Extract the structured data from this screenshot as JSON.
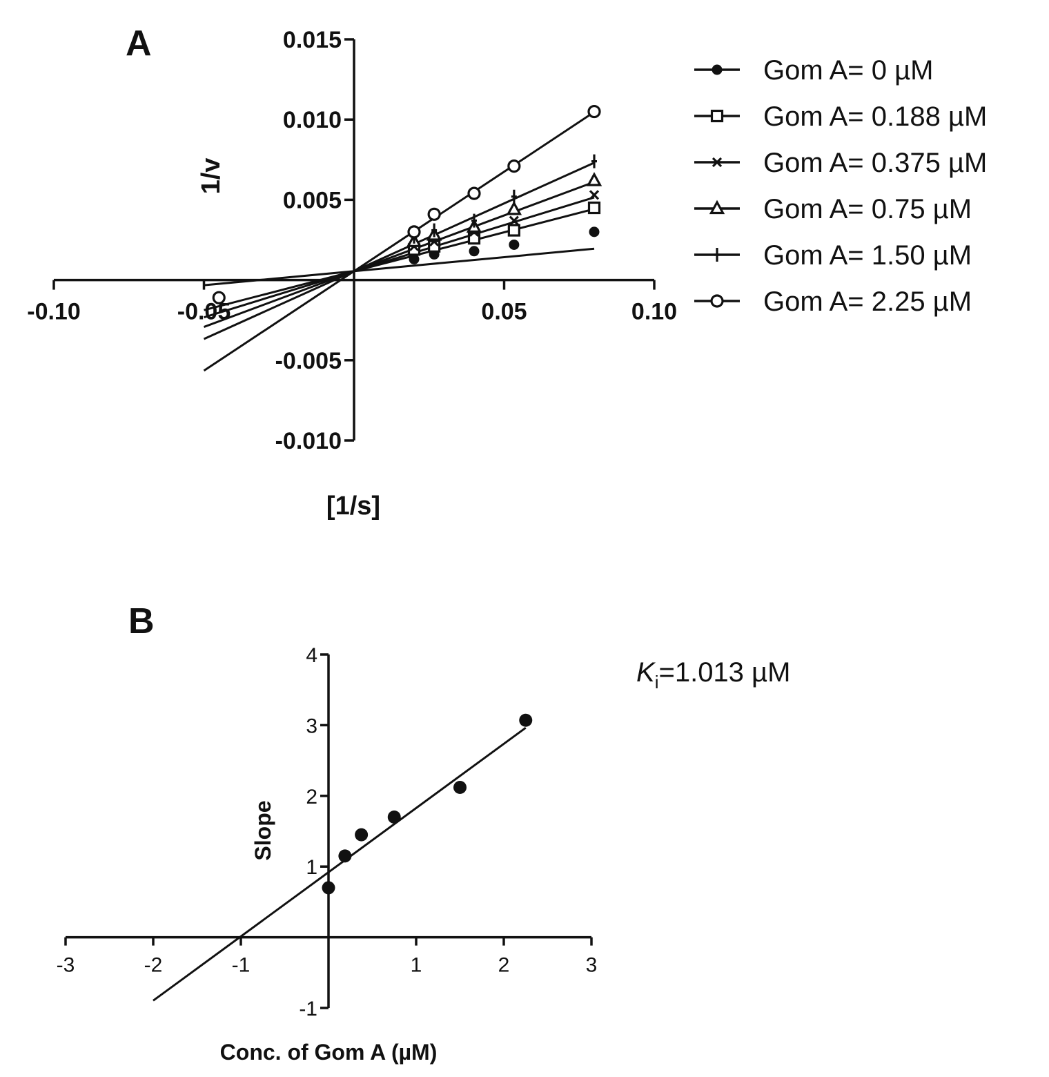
{
  "chart_data": [
    {
      "type": "line",
      "panel_label": "A",
      "xlabel": "[1/s]",
      "ylabel": "1/v",
      "xlim": [
        -0.1,
        0.1
      ],
      "ylim": [
        -0.01,
        0.015
      ],
      "x_ticks": [
        "-0.10",
        "-0.05",
        "0.05",
        "0.10"
      ],
      "y_ticks": [
        "0.015",
        "0.010",
        "0.005",
        "-0.005",
        "-0.010"
      ],
      "x_tick_values": [
        -0.1,
        -0.05,
        0.05,
        0.1
      ],
      "y_tick_values": [
        0.015,
        0.01,
        0.005,
        -0.005,
        -0.01
      ],
      "x": [
        0.02,
        0.0267,
        0.04,
        0.0533,
        0.08
      ],
      "fit_x_range": [
        -0.05,
        0.08
      ],
      "series": [
        {
          "name": "Gom A= 0 µM",
          "marker": "filled-circle",
          "values": [
            0.0013,
            0.0016,
            0.0018,
            0.0022,
            0.003
          ],
          "fit": [
            0.00055,
            1.75e-05
          ]
        },
        {
          "name": "Gom A= 0.188 µM",
          "marker": "open-square",
          "values": [
            0.0019,
            0.0021,
            0.0026,
            0.0031,
            0.0045
          ],
          "fit": [
            0.00055,
            4.85e-05
          ]
        },
        {
          "name": "Gom A= 0.375 µM",
          "marker": "x",
          "values": [
            0.0021,
            0.0024,
            0.003,
            0.0037,
            0.0053
          ],
          "fit": [
            0.00055,
            5.75e-05
          ]
        },
        {
          "name": "Gom A= 0.75 µM",
          "marker": "open-triangle",
          "values": [
            0.0024,
            0.0028,
            0.0033,
            0.0044,
            0.0062
          ],
          "fit": [
            0.00055,
            6.95e-05
          ]
        },
        {
          "name": "Gom A= 1.50 µM",
          "marker": "plus",
          "values": [
            0.0027,
            0.0031,
            0.0037,
            0.0052,
            0.0074
          ],
          "fit": [
            0.00055,
            8.45e-05
          ]
        },
        {
          "name": "Gom A= 2.25 µM",
          "marker": "open-circle",
          "values": [
            0.003,
            0.0041,
            0.0054,
            0.0071,
            0.0105
          ],
          "fit": [
            0.00055,
            0.000124
          ]
        }
      ]
    },
    {
      "type": "scatter",
      "panel_label": "B",
      "xlabel": "Conc. of Gom A (µM)",
      "ylabel": "Slope",
      "xlim": [
        -3,
        3
      ],
      "ylim": [
        -1,
        4
      ],
      "x_ticks": [
        "-3",
        "-2",
        "-1",
        "1",
        "2",
        "3"
      ],
      "y_ticks": [
        "4",
        "3",
        "2",
        "1",
        "-1"
      ],
      "x_tick_values": [
        -3,
        -2,
        -1,
        1,
        2,
        3
      ],
      "y_tick_values": [
        4,
        3,
        2,
        1,
        -1
      ],
      "x": [
        0,
        0.188,
        0.375,
        0.75,
        1.5,
        2.25
      ],
      "values": [
        0.7,
        1.15,
        1.45,
        1.7,
        2.12,
        3.07
      ],
      "fit": {
        "intercept": 0.92,
        "slope": 0.908,
        "x_range": [
          -2,
          2.25
        ]
      },
      "annotation": {
        "symbol": "K",
        "subscript": "i",
        "text": "=1.013 µM"
      }
    }
  ]
}
